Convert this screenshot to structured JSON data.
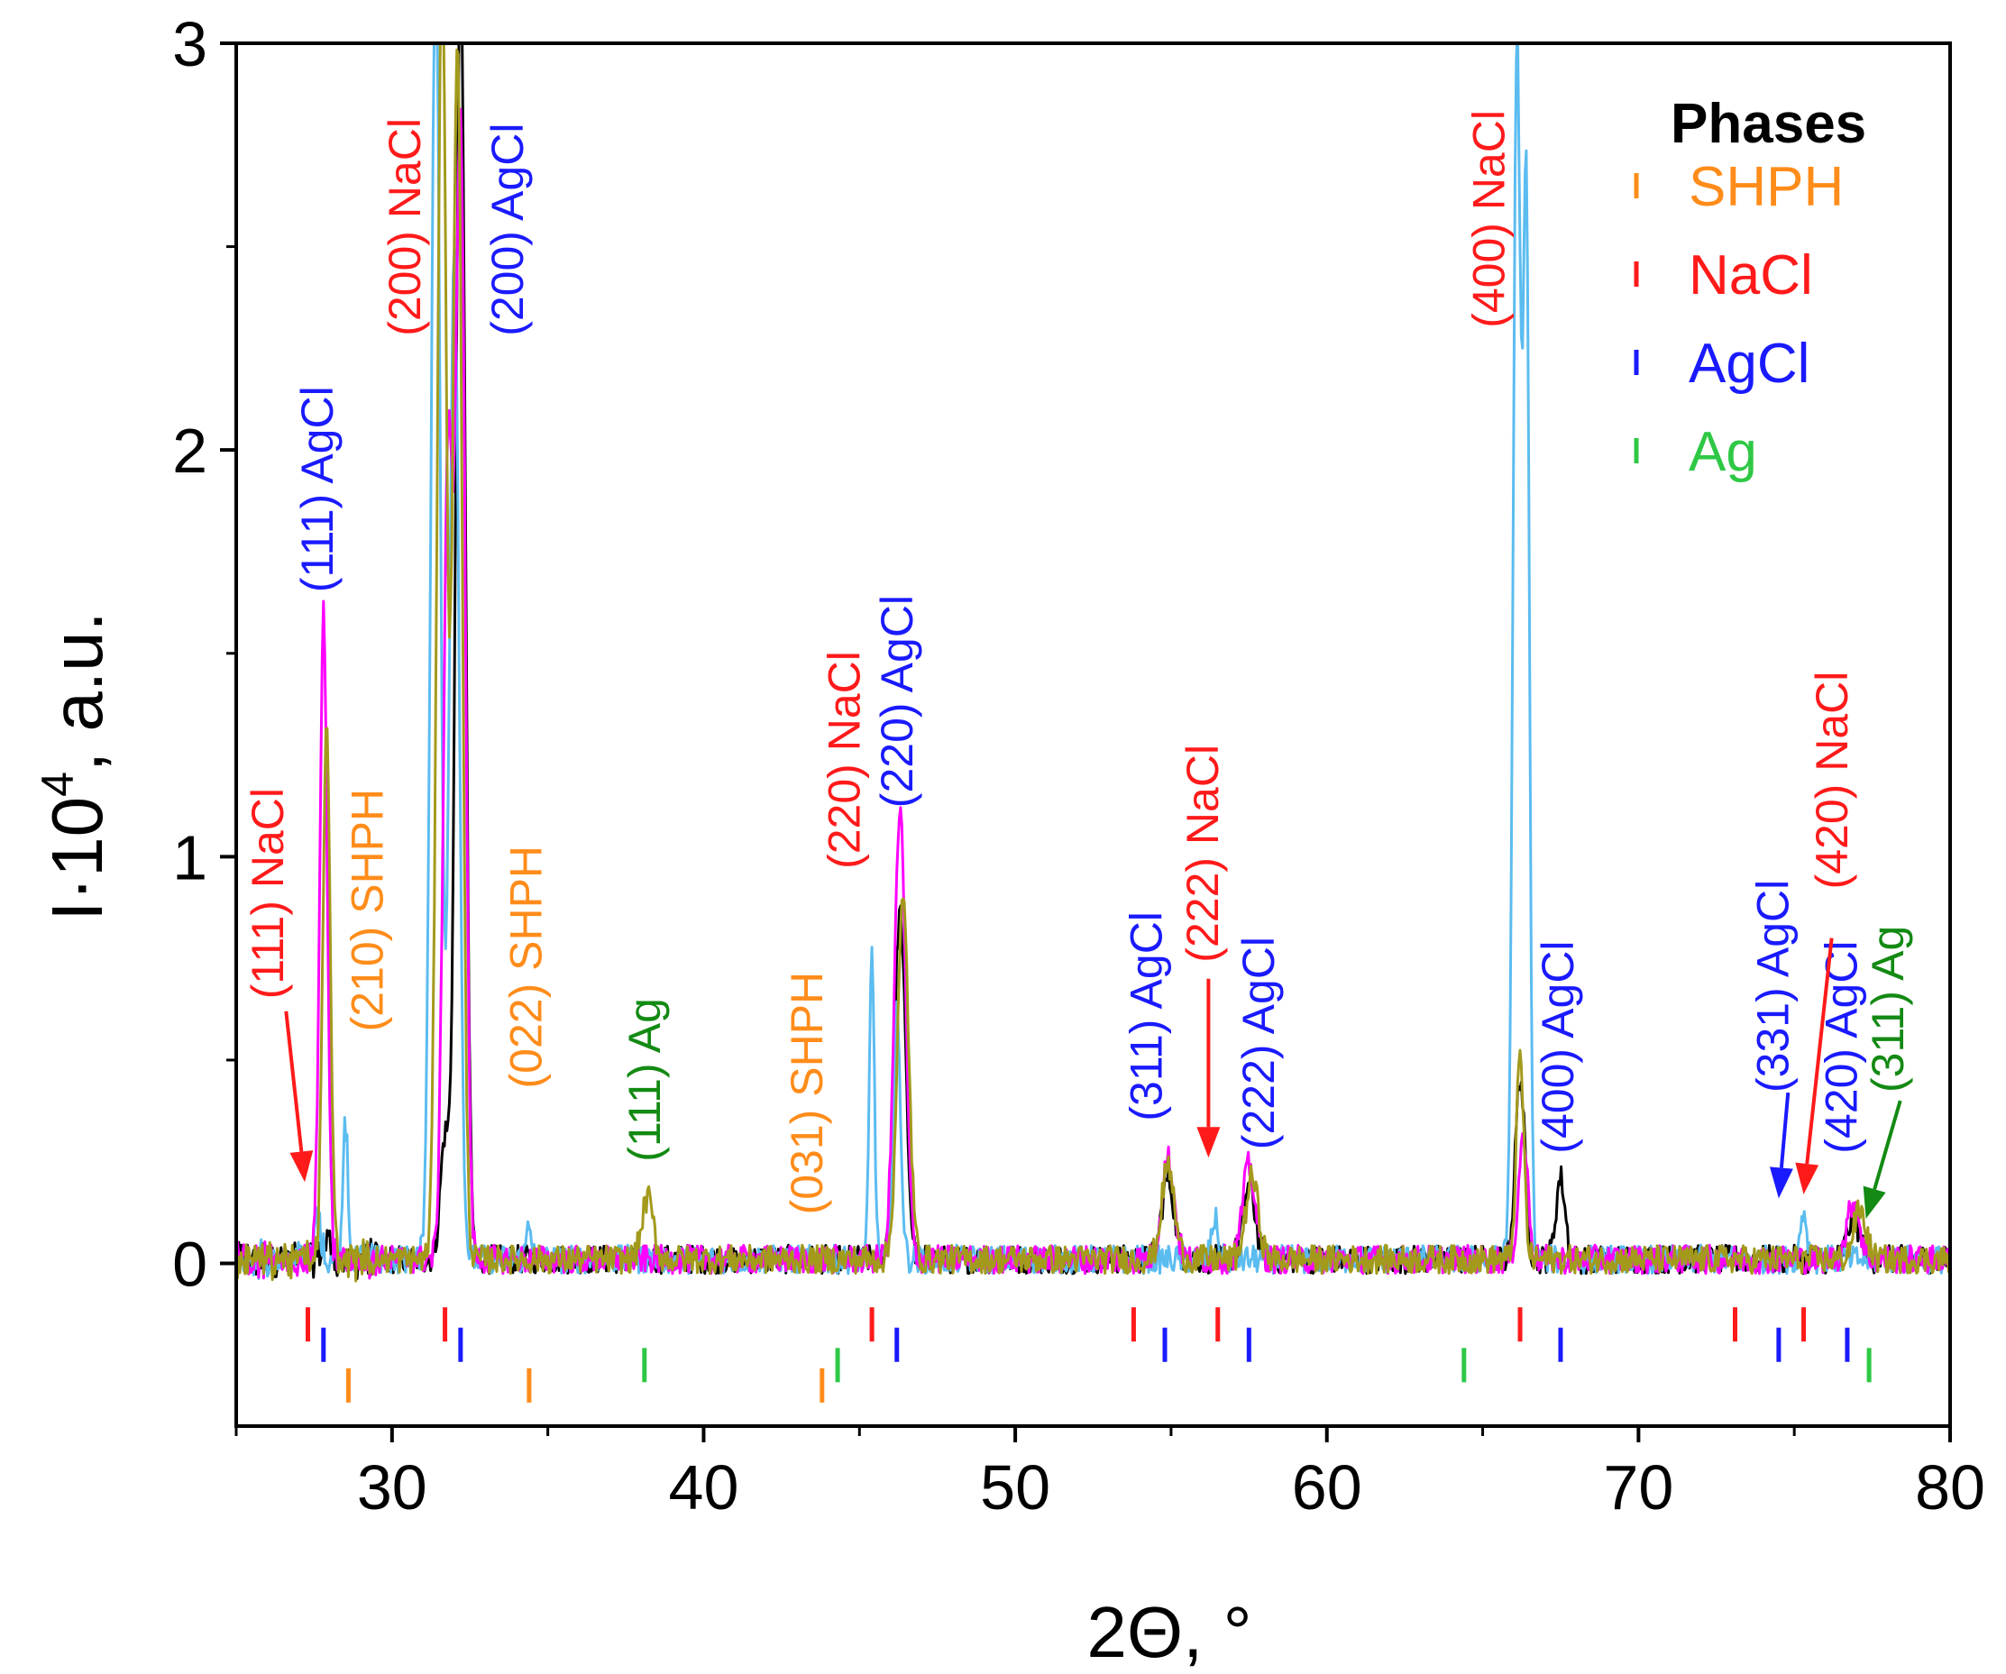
{
  "chart_data": {
    "type": "line",
    "title": "",
    "xlabel": "2Θ, °",
    "ylabel_main": "I·10",
    "ylabel_sup": "4",
    "ylabel_rest": ", a.u.",
    "xlim": [
      25,
      80
    ],
    "ylim": [
      -0.4,
      3
    ],
    "xticks": [
      30,
      40,
      50,
      60,
      70,
      80
    ],
    "yticks": [
      0,
      1,
      2,
      3
    ],
    "xtick_labels": [
      "30",
      "40",
      "50",
      "60",
      "70",
      "80"
    ],
    "ytick_labels": [
      "0",
      "1",
      "2",
      "3"
    ],
    "series_colors": [
      "#000000",
      "#ff00ff",
      "#5bbcf0",
      "#a39a1c"
    ],
    "series": [
      {
        "name": "black",
        "color": "#000000",
        "peaks": [
          [
            27.9,
            0.05,
            0.12
          ],
          [
            31.7,
            0.3,
            0.15
          ],
          [
            32.2,
            3.2,
            0.15
          ],
          [
            46.3,
            0.85,
            0.18
          ],
          [
            54.9,
            0.2,
            0.2
          ],
          [
            57.5,
            0.18,
            0.2
          ],
          [
            66.2,
            0.45,
            0.15
          ],
          [
            67.5,
            0.2,
            0.15
          ],
          [
            76.9,
            0.1,
            0.2
          ]
        ]
      },
      {
        "name": "magenta",
        "color": "#ff00ff",
        "peaks": [
          [
            27.8,
            1.58,
            0.12
          ],
          [
            31.8,
            2.0,
            0.15
          ],
          [
            32.2,
            2.78,
            0.15
          ],
          [
            46.3,
            1.1,
            0.18
          ],
          [
            54.9,
            0.25,
            0.2
          ],
          [
            57.5,
            0.23,
            0.2
          ],
          [
            66.3,
            0.3,
            0.15
          ],
          [
            76.9,
            0.14,
            0.2
          ]
        ]
      },
      {
        "name": "lightblue",
        "color": "#5bbcf0",
        "peaks": [
          [
            27.6,
            0.1,
            0.1
          ],
          [
            28.5,
            0.35,
            0.08
          ],
          [
            31.4,
            3.2,
            0.15
          ],
          [
            32.0,
            2.5,
            0.15
          ],
          [
            34.4,
            0.1,
            0.08
          ],
          [
            45.4,
            0.75,
            0.08
          ],
          [
            46.2,
            0.6,
            0.12
          ],
          [
            56.4,
            0.1,
            0.1
          ],
          [
            66.1,
            3.0,
            0.12
          ],
          [
            66.4,
            2.58,
            0.1
          ],
          [
            75.3,
            0.12,
            0.1
          ]
        ]
      },
      {
        "name": "olive",
        "color": "#a39a1c",
        "peaks": [
          [
            27.9,
            1.3,
            0.12
          ],
          [
            31.6,
            3.2,
            0.15
          ],
          [
            32.1,
            3.0,
            0.15
          ],
          [
            38.2,
            0.15,
            0.18
          ],
          [
            46.4,
            0.88,
            0.18
          ],
          [
            54.9,
            0.23,
            0.2
          ],
          [
            57.6,
            0.2,
            0.2
          ],
          [
            66.2,
            0.5,
            0.12
          ],
          [
            77.1,
            0.12,
            0.2
          ]
        ]
      }
    ],
    "phase_marks": {
      "SHPH": {
        "color": "#ff8c1a",
        "y": -0.3,
        "x": [
          28.6,
          34.4,
          43.8
        ]
      },
      "NaCl": {
        "color": "#ff1a1a",
        "y": -0.15,
        "x": [
          27.3,
          31.7,
          45.4,
          53.8,
          56.5,
          66.2,
          73.1,
          75.3
        ]
      },
      "AgCl": {
        "color": "#1a1aff",
        "y": -0.2,
        "x": [
          27.8,
          32.2,
          46.2,
          54.8,
          57.5,
          67.5,
          74.5,
          76.7
        ]
      },
      "Ag": {
        "color": "#2ec845",
        "y": -0.25,
        "x": [
          38.1,
          44.3,
          64.4,
          77.4
        ]
      }
    },
    "legend": {
      "title": "Phases",
      "position": "top-right",
      "entries": [
        {
          "label": "SHPH",
          "color": "#ff8c1a"
        },
        {
          "label": "NaCl",
          "color": "#ff1a1a"
        },
        {
          "label": "AgCl",
          "color": "#1a1aff"
        },
        {
          "label": "Ag",
          "color": "#2ec845"
        }
      ]
    },
    "annotations": [
      {
        "text": "(111) NaCl",
        "color": "#ff1a1a",
        "x": 26.5,
        "y": 0.65
      },
      {
        "text": "(210) SHPH",
        "color": "#ff8c1a",
        "x": 29.7,
        "y": 0.57
      },
      {
        "text": "(111) AgCl",
        "color": "#1a1aff",
        "x": 28.1,
        "y": 1.65
      },
      {
        "text": "(200) NaCl",
        "color": "#ff1a1a",
        "x": 30.9,
        "y": 2.28
      },
      {
        "text": "(200) AgCl",
        "color": "#1a1aff",
        "x": 34.2,
        "y": 2.28
      },
      {
        "text": "(022) SHPH",
        "color": "#ff8c1a",
        "x": 34.8,
        "y": 0.43
      },
      {
        "text": "(111) Ag",
        "color": "#138a13",
        "x": 38.6,
        "y": 0.25
      },
      {
        "text": "(031) SHPH",
        "color": "#ff8c1a",
        "x": 43.8,
        "y": 0.12
      },
      {
        "text": "(220) NaCl",
        "color": "#ff1a1a",
        "x": 45.0,
        "y": 0.97
      },
      {
        "text": "(220) AgCl",
        "color": "#1a1aff",
        "x": 46.7,
        "y": 1.12
      },
      {
        "text": "(311) AgCl",
        "color": "#1a1aff",
        "x": 54.7,
        "y": 0.35
      },
      {
        "text": "(222) NaCl",
        "color": "#ff1a1a",
        "x": 56.5,
        "y": 0.74
      },
      {
        "text": "(222) AgCl",
        "color": "#1a1aff",
        "x": 58.3,
        "y": 0.28
      },
      {
        "text": "(400) NaCl",
        "color": "#ff1a1a",
        "x": 65.7,
        "y": 2.3
      },
      {
        "text": "(400) AgCl",
        "color": "#1a1aff",
        "x": 67.9,
        "y": 0.27
      },
      {
        "text": "(331) AgCl",
        "color": "#1a1aff",
        "x": 74.8,
        "y": 0.42
      },
      {
        "text": "(420) NaCl",
        "color": "#ff1a1a",
        "x": 76.7,
        "y": 0.92
      },
      {
        "text": "(420) AgCl",
        "color": "#1a1aff",
        "x": 77.0,
        "y": 0.27
      },
      {
        "text": "(311) Ag",
        "color": "#138a13",
        "x": 78.5,
        "y": 0.42
      }
    ],
    "arrows": [
      {
        "color": "#ff1a1a",
        "from": [
          26.6,
          0.62
        ],
        "to": [
          27.2,
          0.2
        ]
      },
      {
        "color": "#ff1a1a",
        "from": [
          56.2,
          0.7
        ],
        "to": [
          56.2,
          0.26
        ]
      },
      {
        "color": "#1a1aff",
        "from": [
          74.8,
          0.42
        ],
        "to": [
          74.5,
          0.16
        ]
      },
      {
        "color": "#ff1a1a",
        "from": [
          76.2,
          0.8
        ],
        "to": [
          75.3,
          0.17
        ]
      },
      {
        "color": "#138a13",
        "from": [
          78.4,
          0.4
        ],
        "to": [
          77.3,
          0.11
        ]
      }
    ]
  }
}
